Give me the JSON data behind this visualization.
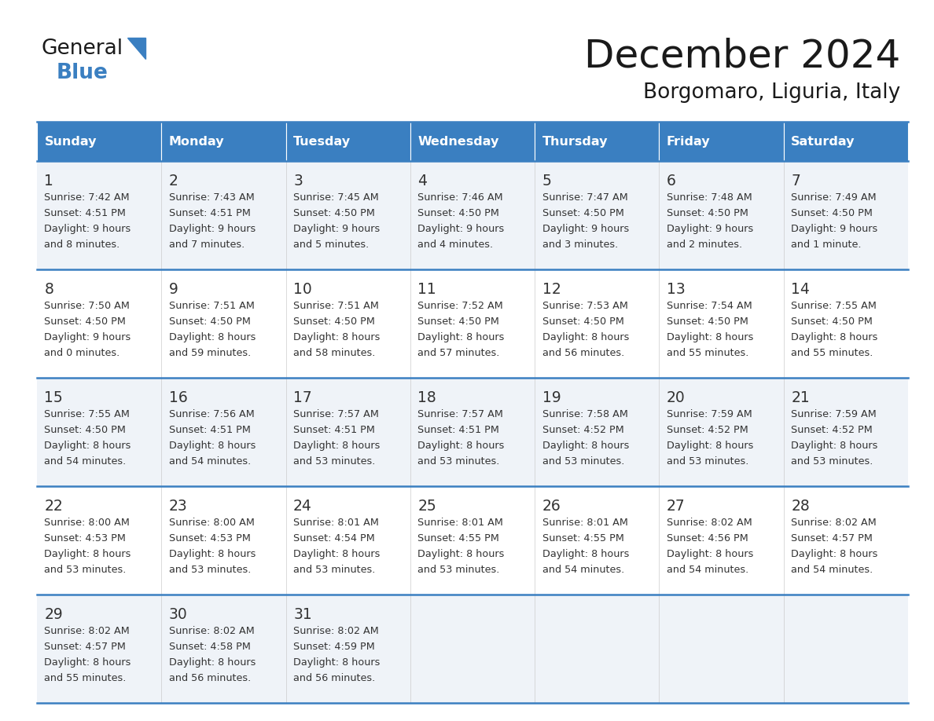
{
  "title": "December 2024",
  "subtitle": "Borgomaro, Liguria, Italy",
  "header_color": "#3a7fc1",
  "header_text_color": "#ffffff",
  "days_of_week": [
    "Sunday",
    "Monday",
    "Tuesday",
    "Wednesday",
    "Thursday",
    "Friday",
    "Saturday"
  ],
  "row_bg_light": "#eff3f8",
  "row_bg_white": "#ffffff",
  "border_color": "#3a7fc1",
  "text_color": "#333333",
  "calendar_data": [
    [
      {
        "day": 1,
        "sunrise": "7:42 AM",
        "sunset": "4:51 PM",
        "dl1": "9 hours",
        "dl2": "and 8 minutes."
      },
      {
        "day": 2,
        "sunrise": "7:43 AM",
        "sunset": "4:51 PM",
        "dl1": "9 hours",
        "dl2": "and 7 minutes."
      },
      {
        "day": 3,
        "sunrise": "7:45 AM",
        "sunset": "4:50 PM",
        "dl1": "9 hours",
        "dl2": "and 5 minutes."
      },
      {
        "day": 4,
        "sunrise": "7:46 AM",
        "sunset": "4:50 PM",
        "dl1": "9 hours",
        "dl2": "and 4 minutes."
      },
      {
        "day": 5,
        "sunrise": "7:47 AM",
        "sunset": "4:50 PM",
        "dl1": "9 hours",
        "dl2": "and 3 minutes."
      },
      {
        "day": 6,
        "sunrise": "7:48 AM",
        "sunset": "4:50 PM",
        "dl1": "9 hours",
        "dl2": "and 2 minutes."
      },
      {
        "day": 7,
        "sunrise": "7:49 AM",
        "sunset": "4:50 PM",
        "dl1": "9 hours",
        "dl2": "and 1 minute."
      }
    ],
    [
      {
        "day": 8,
        "sunrise": "7:50 AM",
        "sunset": "4:50 PM",
        "dl1": "9 hours",
        "dl2": "and 0 minutes."
      },
      {
        "day": 9,
        "sunrise": "7:51 AM",
        "sunset": "4:50 PM",
        "dl1": "8 hours",
        "dl2": "and 59 minutes."
      },
      {
        "day": 10,
        "sunrise": "7:51 AM",
        "sunset": "4:50 PM",
        "dl1": "8 hours",
        "dl2": "and 58 minutes."
      },
      {
        "day": 11,
        "sunrise": "7:52 AM",
        "sunset": "4:50 PM",
        "dl1": "8 hours",
        "dl2": "and 57 minutes."
      },
      {
        "day": 12,
        "sunrise": "7:53 AM",
        "sunset": "4:50 PM",
        "dl1": "8 hours",
        "dl2": "and 56 minutes."
      },
      {
        "day": 13,
        "sunrise": "7:54 AM",
        "sunset": "4:50 PM",
        "dl1": "8 hours",
        "dl2": "and 55 minutes."
      },
      {
        "day": 14,
        "sunrise": "7:55 AM",
        "sunset": "4:50 PM",
        "dl1": "8 hours",
        "dl2": "and 55 minutes."
      }
    ],
    [
      {
        "day": 15,
        "sunrise": "7:55 AM",
        "sunset": "4:50 PM",
        "dl1": "8 hours",
        "dl2": "and 54 minutes."
      },
      {
        "day": 16,
        "sunrise": "7:56 AM",
        "sunset": "4:51 PM",
        "dl1": "8 hours",
        "dl2": "and 54 minutes."
      },
      {
        "day": 17,
        "sunrise": "7:57 AM",
        "sunset": "4:51 PM",
        "dl1": "8 hours",
        "dl2": "and 53 minutes."
      },
      {
        "day": 18,
        "sunrise": "7:57 AM",
        "sunset": "4:51 PM",
        "dl1": "8 hours",
        "dl2": "and 53 minutes."
      },
      {
        "day": 19,
        "sunrise": "7:58 AM",
        "sunset": "4:52 PM",
        "dl1": "8 hours",
        "dl2": "and 53 minutes."
      },
      {
        "day": 20,
        "sunrise": "7:59 AM",
        "sunset": "4:52 PM",
        "dl1": "8 hours",
        "dl2": "and 53 minutes."
      },
      {
        "day": 21,
        "sunrise": "7:59 AM",
        "sunset": "4:52 PM",
        "dl1": "8 hours",
        "dl2": "and 53 minutes."
      }
    ],
    [
      {
        "day": 22,
        "sunrise": "8:00 AM",
        "sunset": "4:53 PM",
        "dl1": "8 hours",
        "dl2": "and 53 minutes."
      },
      {
        "day": 23,
        "sunrise": "8:00 AM",
        "sunset": "4:53 PM",
        "dl1": "8 hours",
        "dl2": "and 53 minutes."
      },
      {
        "day": 24,
        "sunrise": "8:01 AM",
        "sunset": "4:54 PM",
        "dl1": "8 hours",
        "dl2": "and 53 minutes."
      },
      {
        "day": 25,
        "sunrise": "8:01 AM",
        "sunset": "4:55 PM",
        "dl1": "8 hours",
        "dl2": "and 53 minutes."
      },
      {
        "day": 26,
        "sunrise": "8:01 AM",
        "sunset": "4:55 PM",
        "dl1": "8 hours",
        "dl2": "and 54 minutes."
      },
      {
        "day": 27,
        "sunrise": "8:02 AM",
        "sunset": "4:56 PM",
        "dl1": "8 hours",
        "dl2": "and 54 minutes."
      },
      {
        "day": 28,
        "sunrise": "8:02 AM",
        "sunset": "4:57 PM",
        "dl1": "8 hours",
        "dl2": "and 54 minutes."
      }
    ],
    [
      {
        "day": 29,
        "sunrise": "8:02 AM",
        "sunset": "4:57 PM",
        "dl1": "8 hours",
        "dl2": "and 55 minutes."
      },
      {
        "day": 30,
        "sunrise": "8:02 AM",
        "sunset": "4:58 PM",
        "dl1": "8 hours",
        "dl2": "and 56 minutes."
      },
      {
        "day": 31,
        "sunrise": "8:02 AM",
        "sunset": "4:59 PM",
        "dl1": "8 hours",
        "dl2": "and 56 minutes."
      },
      null,
      null,
      null,
      null
    ]
  ]
}
